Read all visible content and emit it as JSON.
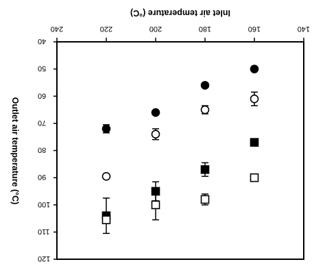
{
  "chart_data": {
    "type": "scatter",
    "orientation": "rotated-180",
    "title": "",
    "xlabel": "Inlet air temperature (°C)",
    "ylabel": "Outlet air temperature (°C)",
    "xlim": [
      140,
      240
    ],
    "ylim": [
      40,
      120
    ],
    "x_ticks": [
      140,
      160,
      180,
      200,
      220,
      240
    ],
    "y_ticks": [
      40,
      50,
      60,
      70,
      80,
      90,
      100,
      110,
      120
    ],
    "x_tick_labels": [
      "140",
      "160",
      "180",
      "200",
      "220",
      "240"
    ],
    "y_tick_labels": [
      "40",
      "50",
      "60",
      "70",
      "80",
      "90",
      "100",
      "110",
      "120"
    ],
    "grid": false,
    "legend": "none",
    "series": [
      {
        "marker": "filled-circle",
        "points": [
          {
            "x": 160,
            "y": 50,
            "err": 0
          },
          {
            "x": 180,
            "y": 56,
            "err": 0
          },
          {
            "x": 200,
            "y": 66,
            "err": 0
          },
          {
            "x": 220,
            "y": 72,
            "err": 1.5
          }
        ]
      },
      {
        "marker": "open-circle",
        "points": [
          {
            "x": 160,
            "y": 61,
            "err": 2.5
          },
          {
            "x": 180,
            "y": 65,
            "err": 1.5
          },
          {
            "x": 200,
            "y": 74,
            "err": 2
          },
          {
            "x": 220,
            "y": 89.5,
            "err": 0
          }
        ]
      },
      {
        "marker": "filled-square",
        "points": [
          {
            "x": 160,
            "y": 77,
            "err": 0
          },
          {
            "x": 180,
            "y": 87,
            "err": 2.5
          },
          {
            "x": 200,
            "y": 95,
            "err": 3.5
          },
          {
            "x": 220,
            "y": 104,
            "err": 6.5
          }
        ]
      },
      {
        "marker": "open-square",
        "points": [
          {
            "x": 160,
            "y": 90,
            "err": 1
          },
          {
            "x": 180,
            "y": 98,
            "err": 2
          },
          {
            "x": 200,
            "y": 100,
            "err": 5.5
          },
          {
            "x": 220,
            "y": 105.5,
            "err": 0
          }
        ]
      }
    ]
  }
}
